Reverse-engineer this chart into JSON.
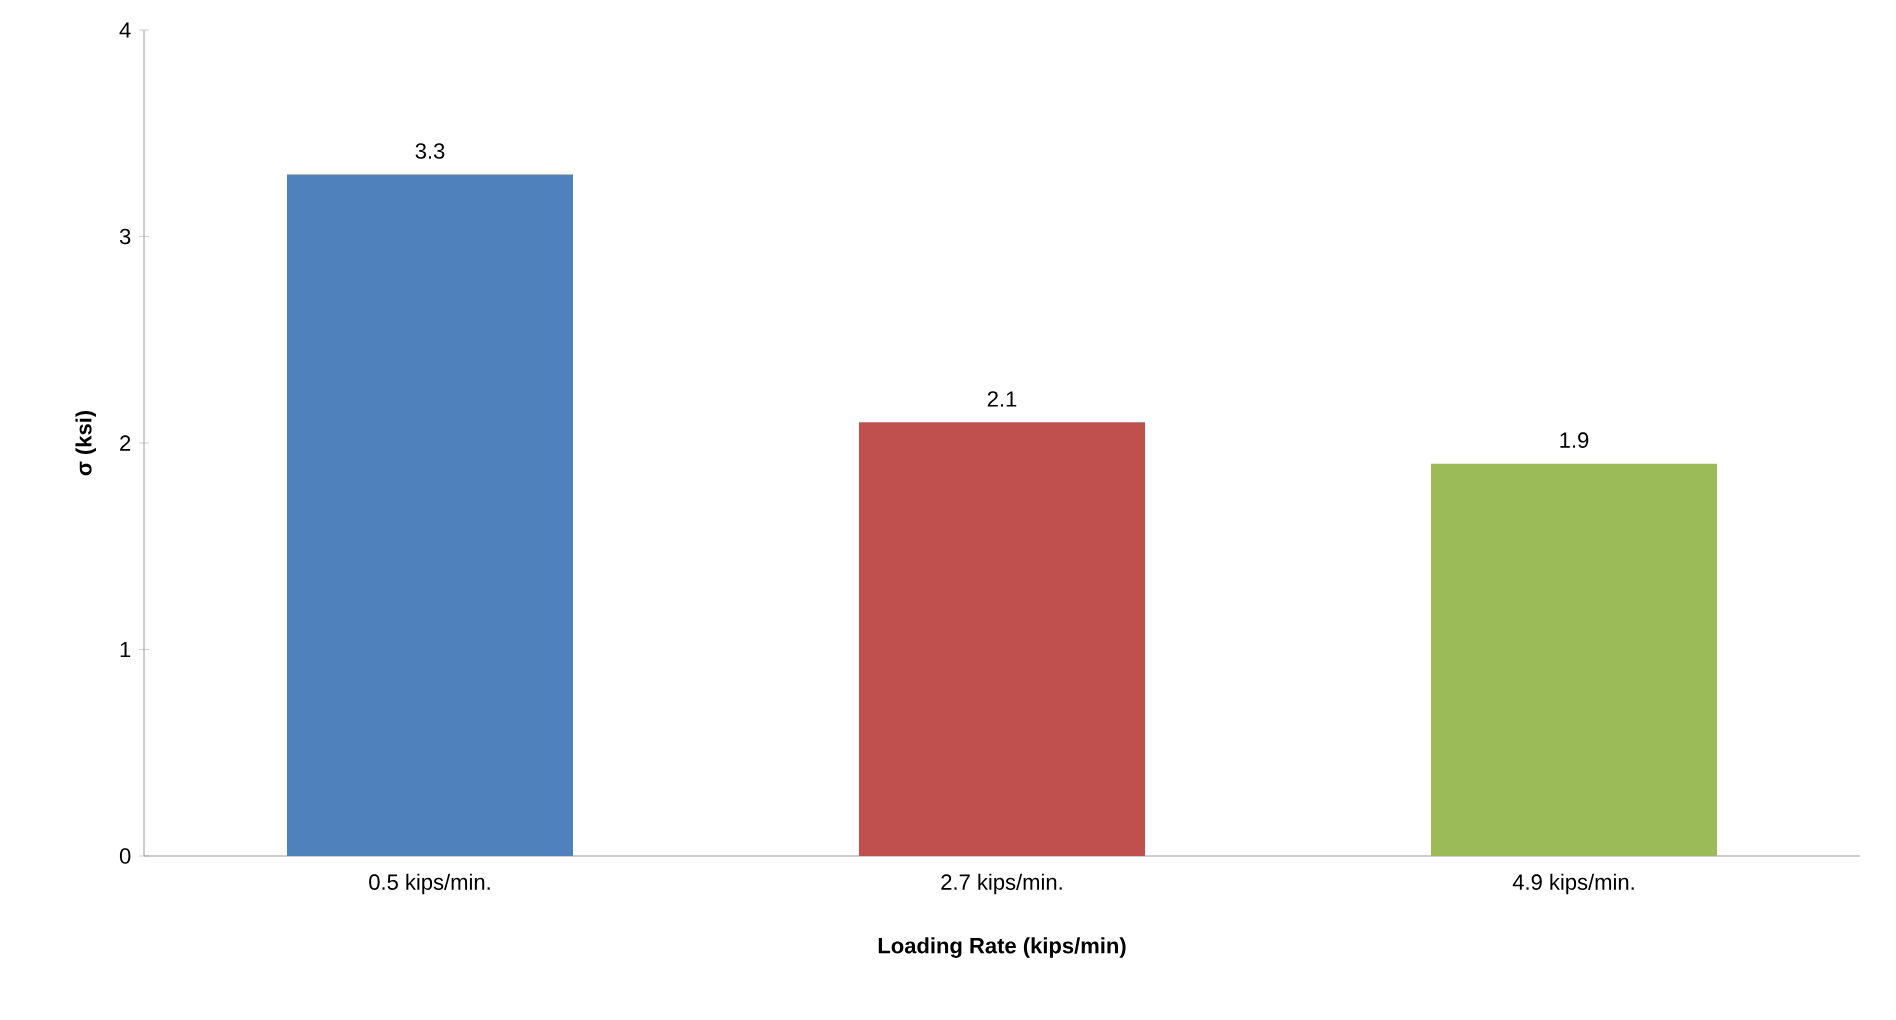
{
  "chart_data": {
    "type": "bar",
    "xlabel": "Loading Rate (kips/min)",
    "ylabel": "σ (ksi)",
    "categories": [
      "0.5 kips/min.",
      "2.7 kips/min.",
      "4.9 kips/min."
    ],
    "values": [
      3.3,
      2.1,
      1.9
    ],
    "colors": [
      "#4f81bd",
      "#c0504d",
      "#9bbb59"
    ],
    "ylim": [
      0,
      4
    ],
    "yticks": [
      0,
      1,
      2,
      3,
      4
    ],
    "data_labels": true,
    "grid": false
  }
}
